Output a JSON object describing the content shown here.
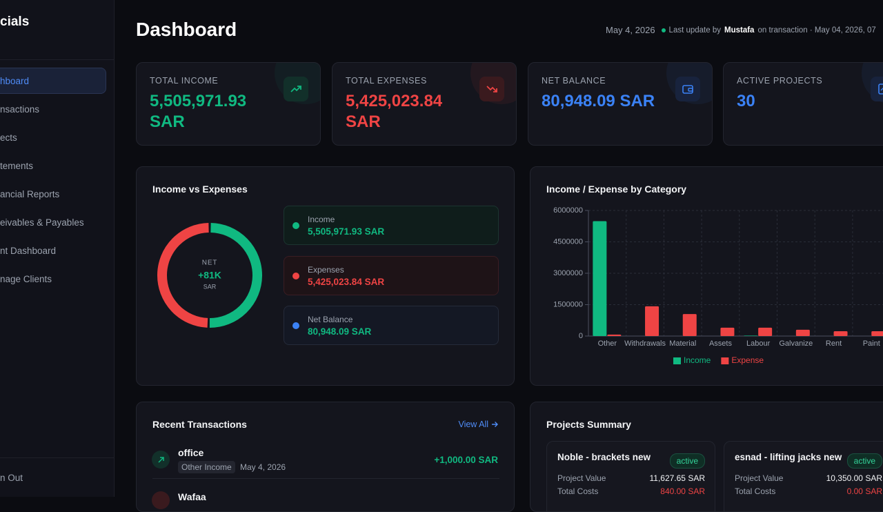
{
  "sidebar": {
    "brand": "cials",
    "nav": [
      "hboard",
      "nsactions",
      "ects",
      "tements",
      "ancial Reports",
      "eivables & Payables",
      "nt Dashboard",
      "nage Clients"
    ],
    "sign_out": "n Out"
  },
  "header": {
    "title": "Dashboard",
    "date": "May 4, 2026",
    "update_prefix": "Last update by",
    "update_user": "Mustafa",
    "update_suffix": "on transaction · May 04, 2026, 07"
  },
  "stats": [
    {
      "label": "TOTAL INCOME",
      "value": "5,505,971.93 SAR"
    },
    {
      "label": "TOTAL EXPENSES",
      "value": "5,425,023.84 SAR"
    },
    {
      "label": "NET BALANCE",
      "value": "80,948.09 SAR"
    },
    {
      "label": "ACTIVE PROJECTS",
      "value": 30
    }
  ],
  "chart_data": [
    {
      "type": "pie",
      "title": "Income vs Expenses",
      "categories": [
        "Income",
        "Expenses"
      ],
      "values": [
        5505971.93,
        5425023.84
      ],
      "value_labels": [
        "5,505,971.93 SAR",
        "5,425,023.84 SAR"
      ],
      "colors": [
        "#10b981",
        "#ef4444"
      ],
      "center_label": "NET",
      "center_value": "+81K",
      "center_unit": "SAR",
      "net_label": "Net Balance",
      "net_value": "80,948.09 SAR"
    },
    {
      "type": "bar",
      "title": "Income / Expense by Category",
      "categories": [
        "Other",
        "Withdrawals",
        "Material",
        "Assets",
        "Labour",
        "Galvanize",
        "Rent",
        "Paint"
      ],
      "series": [
        {
          "name": "Income",
          "color": "#10b981",
          "values": [
            5490000,
            0,
            0,
            0,
            20000,
            0,
            0,
            0
          ]
        },
        {
          "name": "Expense",
          "color": "#ef4444",
          "values": [
            70000,
            1420000,
            1050000,
            400000,
            400000,
            300000,
            230000,
            230000
          ]
        }
      ],
      "ylim": [
        0,
        6000000
      ],
      "yticks": [
        0,
        1500000,
        3000000,
        4500000,
        6000000
      ],
      "grid": true
    }
  ],
  "transactions": {
    "title": "Recent Transactions",
    "view_all": "View All",
    "items": [
      {
        "title": "office",
        "category": "Other Income",
        "date": "May 4, 2026",
        "amount": "+1,000.00 SAR"
      },
      {
        "title": "Wafaa"
      }
    ]
  },
  "projects": {
    "title": "Projects Summary",
    "items": [
      {
        "name": "Noble - brackets new",
        "status": "active",
        "value_label": "Project Value",
        "value": "11,627.65 SAR",
        "cost_label": "Total Costs",
        "cost": "840.00 SAR"
      },
      {
        "name": "esnad - lifting jacks new",
        "status": "active",
        "value_label": "Project Value",
        "value": "10,350.00 SAR",
        "cost_label": "Total Costs",
        "cost": "0.00 SAR"
      }
    ]
  }
}
